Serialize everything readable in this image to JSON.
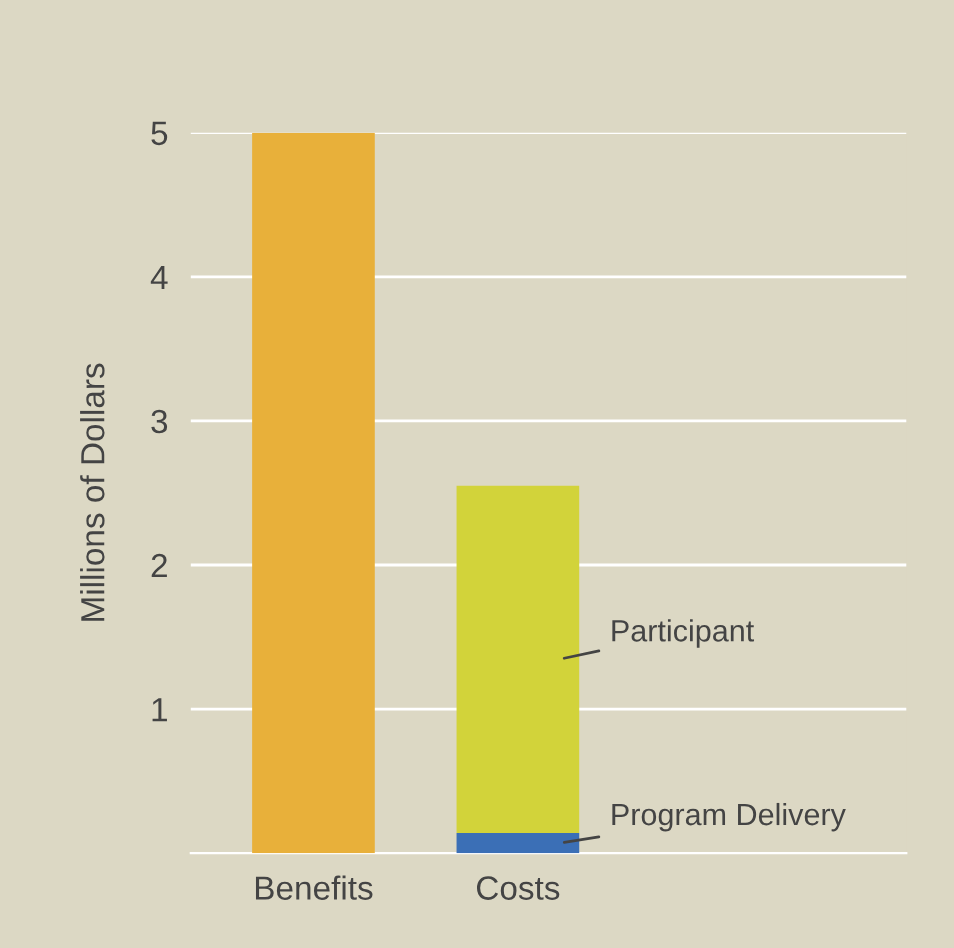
{
  "chart_data": {
    "type": "bar",
    "stacked": true,
    "ylabel": "Millions of Dollars",
    "categories": [
      "Benefits",
      "Costs"
    ],
    "series": [
      {
        "color": "#e8b03a",
        "values": [
          5.0,
          null
        ]
      },
      {
        "name": "Program Delivery",
        "color": "#3b6fb6",
        "values": [
          null,
          0.14
        ]
      },
      {
        "name": "Participant",
        "color": "#d2d33a",
        "values": [
          null,
          2.41
        ]
      }
    ],
    "ylim": [
      0,
      5
    ],
    "yticks": [
      1,
      2,
      3,
      4,
      5
    ],
    "grid": "y",
    "legend": false
  }
}
